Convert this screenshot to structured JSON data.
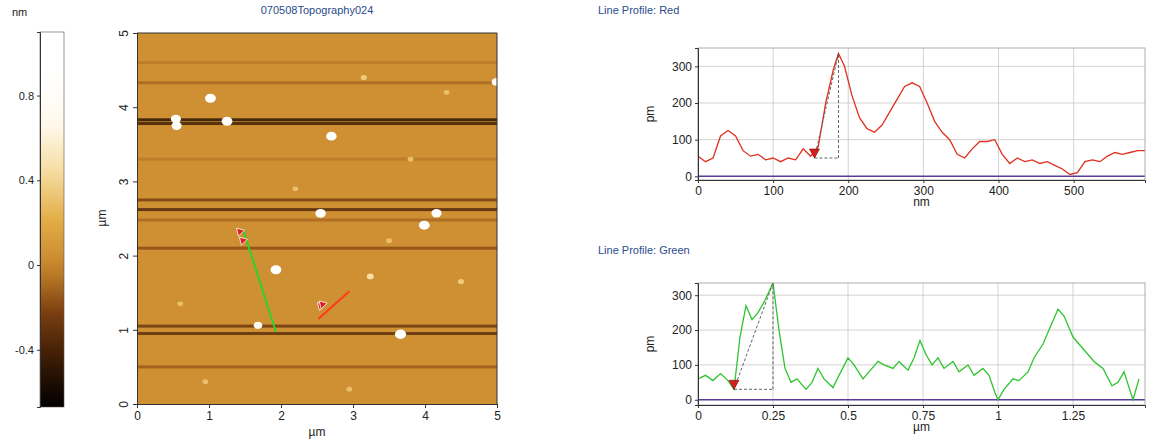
{
  "chart_data": [
    {
      "type": "image",
      "title": "070508Topography024",
      "x_label": "µm",
      "y_label": "µm",
      "xlim": [
        0,
        5
      ],
      "ylim": [
        0,
        5
      ],
      "xticks": [
        0,
        1,
        2,
        3,
        4,
        5
      ],
      "yticks": [
        0,
        1,
        2,
        3,
        4,
        5
      ],
      "base_height": 0.05,
      "colorbar": {
        "label": "nm",
        "range": [
          -0.67,
          1.1
        ],
        "ticks": [
          -0.4,
          0,
          0.4,
          0.8
        ]
      },
      "streaks": {
        "y": [
          4.6,
          4.33,
          3.83,
          3.78,
          3.3,
          2.75,
          2.62,
          2.48,
          2.1,
          1.05,
          0.95,
          0.5
        ],
        "height": [
          -0.05,
          -0.1,
          -0.55,
          -0.45,
          -0.05,
          -0.25,
          -0.4,
          -0.1,
          -0.2,
          -0.3,
          -0.35,
          -0.15
        ]
      },
      "particles": {
        "x": [
          1.02,
          0.54,
          0.55,
          1.25,
          2.7,
          2.55,
          4.16,
          3.99,
          1.93,
          3.66,
          1.68,
          4.99,
          3.24,
          3.15,
          4.3,
          0.6,
          2.2,
          3.5,
          4.5,
          2.95,
          0.95,
          3.8
        ],
        "y": [
          4.12,
          3.84,
          3.75,
          3.81,
          3.61,
          2.57,
          2.57,
          2.41,
          1.81,
          0.94,
          1.06,
          4.34,
          1.72,
          4.4,
          4.2,
          1.35,
          2.9,
          2.2,
          1.65,
          0.2,
          0.3,
          3.3
        ],
        "height": [
          1.0,
          0.9,
          0.9,
          1.0,
          0.95,
          0.95,
          0.9,
          1.0,
          1.0,
          1.05,
          0.7,
          0.8,
          0.45,
          0.35,
          0.3,
          0.3,
          0.3,
          0.3,
          0.35,
          0.3,
          0.3,
          0.3
        ]
      },
      "profiles": [
        {
          "color": "#ff3a1a",
          "x": [
            2.52,
            2.95
          ],
          "y": [
            1.15,
            1.52
          ]
        },
        {
          "color": "#2ed12e",
          "x": [
            1.47,
            1.93
          ],
          "y": [
            2.36,
            0.97
          ]
        }
      ]
    },
    {
      "type": "line",
      "title": "Line Profile: Red",
      "x_label": "nm",
      "y_label": "pm",
      "xlim": [
        0,
        595
      ],
      "ylim": [
        -10,
        350
      ],
      "xticks": [
        0,
        100,
        200,
        300,
        400,
        500
      ],
      "yticks": [
        0,
        100,
        200,
        300
      ],
      "grid": true,
      "x": [
        0,
        10,
        20,
        30,
        40,
        50,
        60,
        70,
        80,
        90,
        100,
        110,
        120,
        130,
        140,
        150,
        160,
        170,
        180,
        187,
        195,
        205,
        215,
        225,
        235,
        245,
        255,
        265,
        275,
        285,
        295,
        305,
        315,
        325,
        335,
        345,
        355,
        365,
        375,
        385,
        395,
        405,
        415,
        425,
        435,
        445,
        455,
        465,
        475,
        485,
        495,
        505,
        515,
        525,
        535,
        545,
        555,
        565,
        575,
        585,
        595
      ],
      "series": [
        {
          "color": "#e0301e",
          "values": [
            55,
            40,
            50,
            110,
            125,
            110,
            70,
            55,
            60,
            45,
            50,
            40,
            50,
            45,
            75,
            55,
            80,
            200,
            290,
            335,
            300,
            220,
            160,
            130,
            120,
            140,
            175,
            210,
            245,
            255,
            245,
            200,
            150,
            120,
            100,
            60,
            50,
            75,
            95,
            95,
            100,
            60,
            35,
            50,
            40,
            45,
            35,
            40,
            30,
            20,
            5,
            10,
            40,
            45,
            40,
            55,
            65,
            60,
            65,
            70,
            70
          ]
        }
      ],
      "cursor": {
        "x": [
          155,
          187
        ],
        "y": [
          50,
          335
        ]
      }
    },
    {
      "type": "line",
      "title": "Line Profile: Green",
      "x_label": "µm",
      "y_label": "pm",
      "xlim": [
        0,
        1.49
      ],
      "ylim": [
        -15,
        335
      ],
      "xticks": [
        0,
        0.25,
        0.5,
        0.75,
        1,
        1.25
      ],
      "yticks": [
        0,
        100,
        200,
        300
      ],
      "grid": true,
      "x": [
        0,
        0.025,
        0.05,
        0.075,
        0.1,
        0.12,
        0.14,
        0.16,
        0.18,
        0.2,
        0.22,
        0.25,
        0.27,
        0.29,
        0.31,
        0.33,
        0.36,
        0.38,
        0.4,
        0.42,
        0.45,
        0.47,
        0.5,
        0.52,
        0.55,
        0.57,
        0.6,
        0.62,
        0.65,
        0.67,
        0.7,
        0.72,
        0.74,
        0.76,
        0.78,
        0.8,
        0.82,
        0.85,
        0.87,
        0.9,
        0.92,
        0.95,
        0.97,
        0.99,
        1.0,
        1.02,
        1.05,
        1.07,
        1.1,
        1.12,
        1.15,
        1.18,
        1.2,
        1.22,
        1.25,
        1.28,
        1.3,
        1.32,
        1.35,
        1.38,
        1.4,
        1.42,
        1.45,
        1.47
      ],
      "series": [
        {
          "color": "#2ec42e",
          "values": [
            60,
            70,
            55,
            75,
            55,
            30,
            180,
            270,
            230,
            250,
            280,
            335,
            200,
            90,
            50,
            60,
            30,
            50,
            90,
            60,
            35,
            70,
            120,
            100,
            60,
            80,
            110,
            100,
            90,
            110,
            85,
            120,
            170,
            130,
            100,
            120,
            90,
            110,
            80,
            100,
            70,
            90,
            70,
            20,
            0,
            30,
            60,
            55,
            80,
            120,
            160,
            220,
            260,
            240,
            180,
            150,
            130,
            110,
            90,
            40,
            50,
            80,
            0,
            60
          ]
        }
      ],
      "cursor": {
        "x": [
          0.12,
          0.25
        ],
        "y": [
          30,
          335
        ]
      }
    }
  ]
}
